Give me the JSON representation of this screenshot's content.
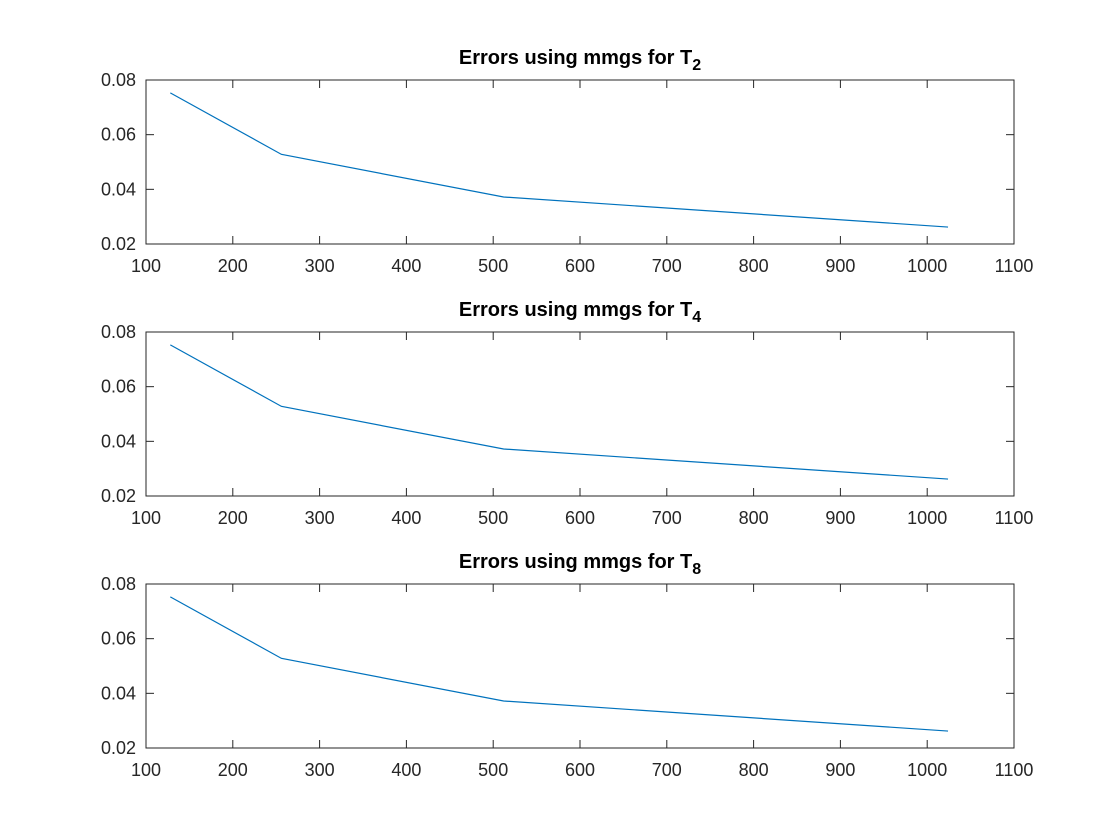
{
  "figure": {
    "background": "#ffffff",
    "axis_color": "#262626"
  },
  "chart_data": [
    {
      "type": "line",
      "title": "Errors using mmgs for T",
      "title_subscript": "2",
      "xlabel": "",
      "ylabel": "",
      "xlim": [
        100,
        1100
      ],
      "ylim": [
        0.02,
        0.08
      ],
      "xticks": [
        100,
        200,
        300,
        400,
        500,
        600,
        700,
        800,
        900,
        1000,
        1100
      ],
      "yticks": [
        0.02,
        0.04,
        0.06,
        0.08
      ],
      "xtick_labels": [
        "100",
        "200",
        "300",
        "400",
        "500",
        "600",
        "700",
        "800",
        "900",
        "1000",
        "1100"
      ],
      "ytick_labels": [
        "0.02",
        "0.04",
        "0.06",
        "0.08"
      ],
      "grid": false,
      "series": [
        {
          "color": "#0072bd",
          "x": [
            128,
            256,
            512,
            1024
          ],
          "y": [
            0.0753,
            0.0528,
            0.0372,
            0.0262
          ]
        }
      ]
    },
    {
      "type": "line",
      "title": "Errors using mmgs for T",
      "title_subscript": "4",
      "xlabel": "",
      "ylabel": "",
      "xlim": [
        100,
        1100
      ],
      "ylim": [
        0.02,
        0.08
      ],
      "xticks": [
        100,
        200,
        300,
        400,
        500,
        600,
        700,
        800,
        900,
        1000,
        1100
      ],
      "yticks": [
        0.02,
        0.04,
        0.06,
        0.08
      ],
      "xtick_labels": [
        "100",
        "200",
        "300",
        "400",
        "500",
        "600",
        "700",
        "800",
        "900",
        "1000",
        "1100"
      ],
      "ytick_labels": [
        "0.02",
        "0.04",
        "0.06",
        "0.08"
      ],
      "grid": false,
      "series": [
        {
          "color": "#0072bd",
          "x": [
            128,
            256,
            512,
            1024
          ],
          "y": [
            0.0753,
            0.0528,
            0.0372,
            0.0262
          ]
        }
      ]
    },
    {
      "type": "line",
      "title": "Errors using mmgs for T",
      "title_subscript": "8",
      "xlabel": "",
      "ylabel": "",
      "xlim": [
        100,
        1100
      ],
      "ylim": [
        0.02,
        0.08
      ],
      "xticks": [
        100,
        200,
        300,
        400,
        500,
        600,
        700,
        800,
        900,
        1000,
        1100
      ],
      "yticks": [
        0.02,
        0.04,
        0.06,
        0.08
      ],
      "xtick_labels": [
        "100",
        "200",
        "300",
        "400",
        "500",
        "600",
        "700",
        "800",
        "900",
        "1000",
        "1100"
      ],
      "ytick_labels": [
        "0.02",
        "0.04",
        "0.06",
        "0.08"
      ],
      "grid": false,
      "series": [
        {
          "color": "#0072bd",
          "x": [
            128,
            256,
            512,
            1024
          ],
          "y": [
            0.0753,
            0.0528,
            0.0372,
            0.0262
          ]
        }
      ]
    }
  ]
}
